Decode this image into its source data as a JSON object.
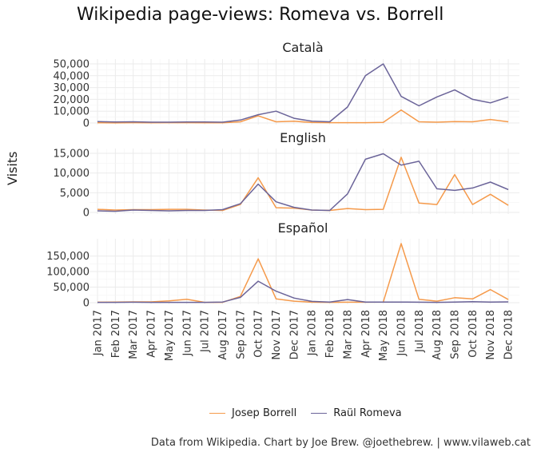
{
  "title": "Wikipedia page-views: Romeva vs. Borrell",
  "ylabel": "Visits",
  "caption": "Data from Wikipedia. Chart by Joe Brew. @joethebrew. | www.vilaweb.cat",
  "legend": [
    {
      "name": "Josep Borrell",
      "color": "#F59A4B"
    },
    {
      "name": "Raül Romeva",
      "color": "#6B6499"
    }
  ],
  "chart_data": {
    "type": "line",
    "x": [
      "Jan 2017",
      "Feb 2017",
      "Mar 2017",
      "Apr 2017",
      "May 2017",
      "Jun 2017",
      "Jul 2017",
      "Aug 2017",
      "Sep 2017",
      "Oct 2017",
      "Nov 2017",
      "Dec 2017",
      "Jan 2018",
      "Feb 2018",
      "Mar 2018",
      "Apr 2018",
      "May 2018",
      "Jun 2018",
      "Jul 2018",
      "Aug 2018",
      "Sep 2018",
      "Oct 2018",
      "Nov 2018",
      "Dec 2018"
    ],
    "panels": [
      {
        "title": "Català",
        "ylim": [
          0,
          50000
        ],
        "yticks": [
          0,
          10000,
          20000,
          30000,
          40000,
          50000
        ],
        "ytick_labels": [
          "0",
          "10,000",
          "20,000",
          "30,000",
          "40,000",
          "50,000"
        ],
        "series": [
          {
            "name": "Josep Borrell",
            "color": "#F59A4B",
            "values": [
              200,
              100,
              300,
              200,
              300,
              300,
              200,
              200,
              1000,
              6000,
              1000,
              1500,
              400,
              300,
              300,
              300,
              500,
              11000,
              1000,
              700,
              1200,
              1000,
              3000,
              1000
            ]
          },
          {
            "name": "Raül Romeva",
            "color": "#6B6499",
            "values": [
              1200,
              800,
              1000,
              700,
              700,
              900,
              800,
              700,
              2500,
              7000,
              10000,
              4000,
              1500,
              1000,
              13500,
              40000,
              50000,
              22500,
              14500,
              22000,
              28000,
              20000,
              17000,
              22000
            ]
          }
        ]
      },
      {
        "title": "English",
        "ylim": [
          0,
          15000
        ],
        "yticks": [
          0,
          5000,
          10000,
          15000
        ],
        "ytick_labels": [
          "0",
          "5,000",
          "10,000",
          "15,000"
        ],
        "series": [
          {
            "name": "Josep Borrell",
            "color": "#F59A4B",
            "values": [
              800,
              600,
              700,
              700,
              800,
              800,
              600,
              500,
              2000,
              8800,
              1200,
              1100,
              600,
              500,
              1000,
              700,
              800,
              14000,
              2400,
              2000,
              9600,
              2000,
              4600,
              1800
            ]
          },
          {
            "name": "Raül Romeva",
            "color": "#6B6499",
            "values": [
              400,
              300,
              600,
              500,
              400,
              500,
              500,
              700,
              2200,
              7200,
              2700,
              1300,
              600,
              500,
              4700,
              13500,
              14900,
              12000,
              13000,
              6000,
              5600,
              6200,
              7700,
              5800
            ]
          }
        ]
      },
      {
        "title": "Español",
        "ylim": [
          0,
          190000
        ],
        "yticks": [
          0,
          50000,
          100000,
          150000
        ],
        "ytick_labels": [
          "0",
          "50,000",
          "100,000",
          "150,000"
        ],
        "series": [
          {
            "name": "Josep Borrell",
            "color": "#F59A4B",
            "values": [
              1500,
              2000,
              2500,
              2500,
              6000,
              11000,
              1000,
              1000,
              20000,
              141000,
              12000,
              5000,
              1500,
              1000,
              1500,
              1500,
              2000,
              190000,
              11000,
              5000,
              16000,
              12000,
              42000,
              10000
            ]
          },
          {
            "name": "Raül Romeva",
            "color": "#6B6499",
            "values": [
              1000,
              1000,
              1500,
              1000,
              1000,
              1000,
              1000,
              2000,
              17000,
              69000,
              37000,
              15000,
              4000,
              2000,
              10000,
              2000,
              2000,
              2000,
              1500,
              1000,
              2000,
              3000,
              2000,
              2500
            ]
          }
        ]
      }
    ]
  }
}
